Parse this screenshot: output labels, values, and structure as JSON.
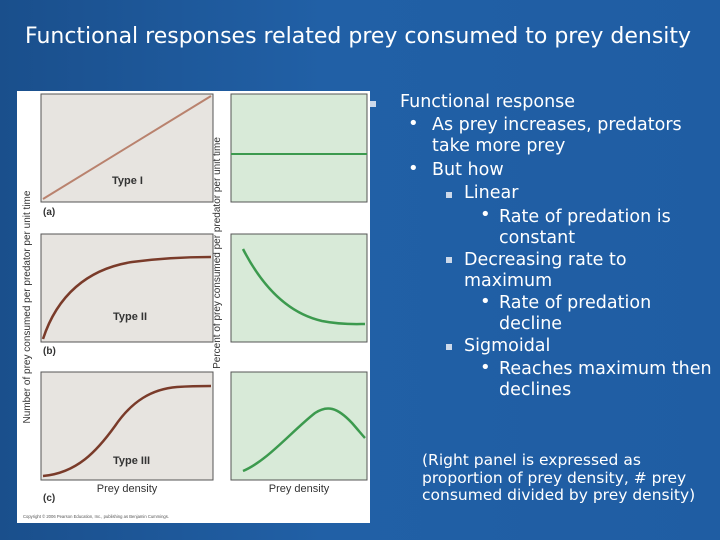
{
  "slide": {
    "title": "Functional responses related prey consumed to prey density"
  },
  "figure": {
    "left_ylabel": "Number of prey consumed per predator per unit time",
    "right_ylabel": "Percent of prey consumed per predator per unit time",
    "panels": [
      {
        "type_label": "Type I",
        "letter": "(a)"
      },
      {
        "type_label": "Type II",
        "letter": "(b)"
      },
      {
        "type_label": "Type III",
        "letter": "(c)"
      }
    ],
    "left_xlabel": "Prey density",
    "right_xlabel": "Prey density",
    "copyright": "Copyright © 2006 Pearson Education, Inc., publishing as Benjamin Cummings.",
    "colors": {
      "left_curve": "#7a3b2a",
      "right_curve": "#3c9a4e",
      "left_panel_bg": "#e7e4e0",
      "right_panel_bg": "#d8ead8"
    }
  },
  "bullets": {
    "b1": "Functional response",
    "b1_1": "As prey increases, predators take more prey",
    "b1_2": "But how",
    "b1_2_1": "Linear",
    "b1_2_1_1": "Rate of predation is constant",
    "b1_2_2": "Decreasing rate to maximum",
    "b1_2_2_1": "Rate of predation decline",
    "b1_2_3": "Sigmoidal",
    "b1_2_3_1": "Reaches maximum then declines"
  },
  "note": "(Right panel is expressed as proportion of prey density, # prey consumed divided by prey density)"
}
